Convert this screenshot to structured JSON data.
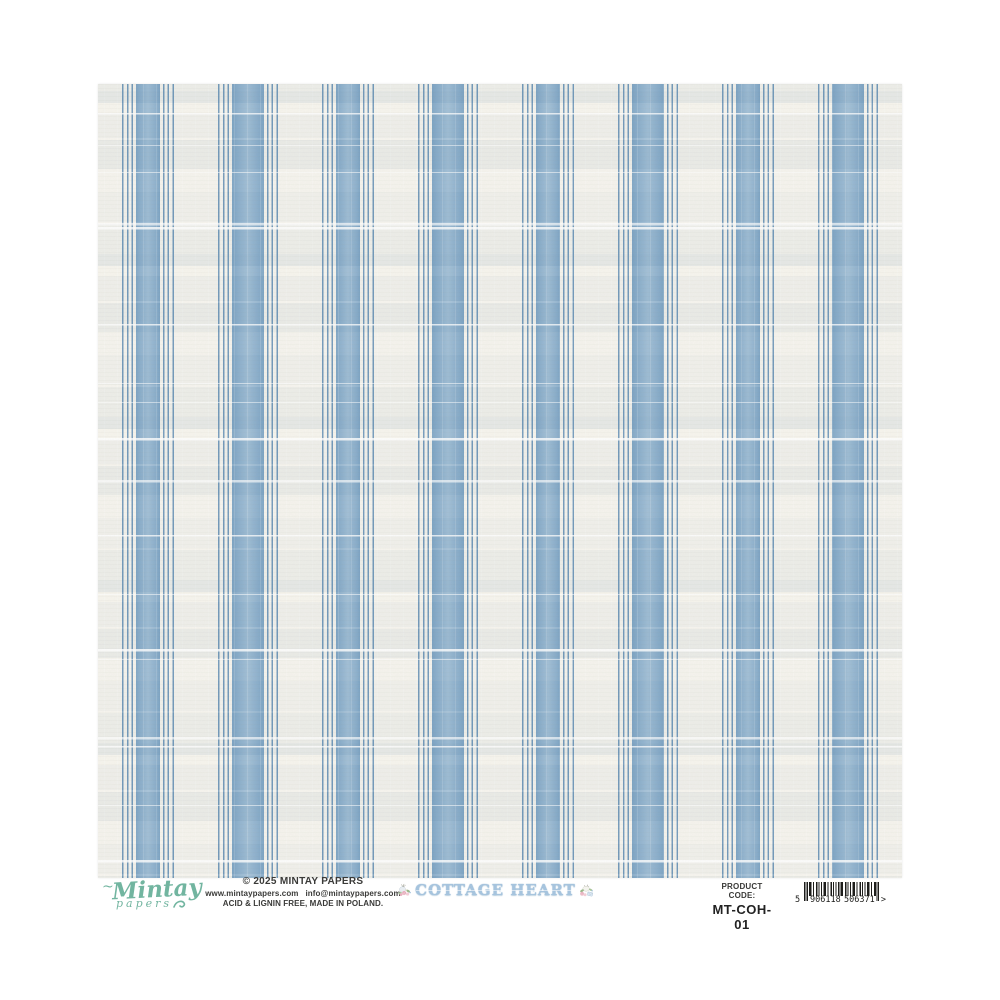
{
  "colors": {
    "page_bg": "#ffffff",
    "paper_bg": "#f5f3ec",
    "stripe_mid": "#86abc9",
    "stripe_light": "#9dbcd4",
    "stripe_edge": "#7aa2c2",
    "stripe_line": "#6f97b9",
    "logo_teal": "#72b5a0",
    "title_blue": "#a6c4de",
    "title_outline": "#7fa6c6",
    "text_dark": "#3a3a38",
    "barcode_ink": "#1d1d1b"
  },
  "paper": {
    "description": "blue ticking-stripe patterned scrapbook paper",
    "stripe_groups": 8
  },
  "footer": {
    "logo": {
      "name": "Mintay",
      "sub": "papers"
    },
    "copyright": {
      "line1": "© 2025 MINTAY PAPERS",
      "line2": "www.mintaypapers.com   info@mintaypapers.com",
      "line3": "ACID & LIGNIN FREE, MADE IN POLAND."
    },
    "title": "COTTAGE HEART",
    "product_code": {
      "label": "PRODUCT CODE:",
      "value": "MT-COH-01"
    },
    "barcode": {
      "prefix": "5",
      "group1": "906118",
      "group2": "506371",
      "suffix": ">"
    }
  }
}
